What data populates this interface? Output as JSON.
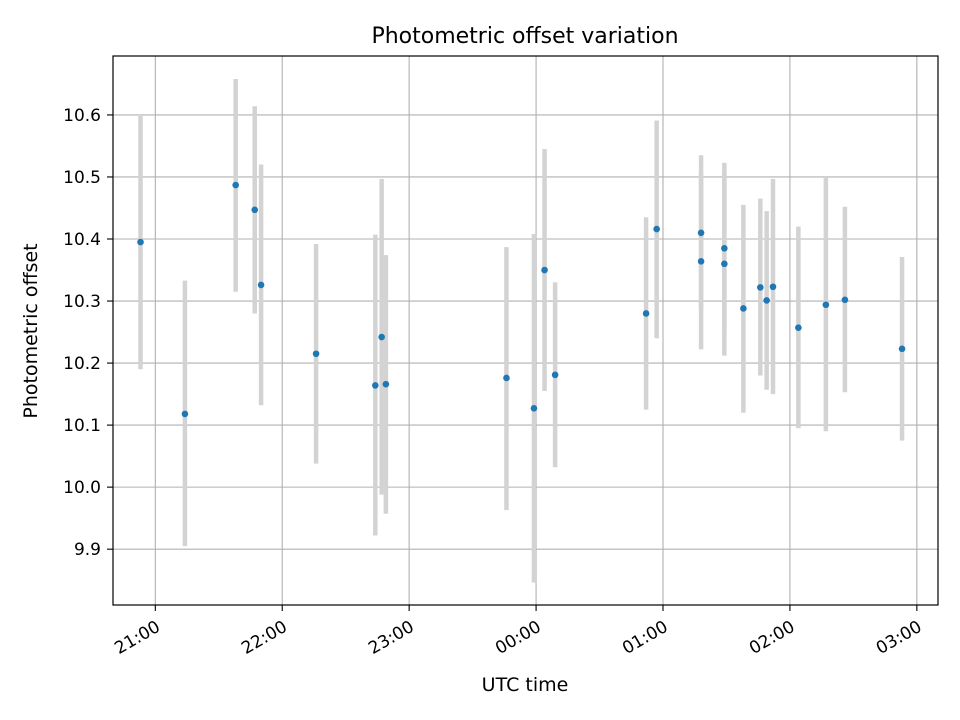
{
  "chart_data": {
    "type": "scatter",
    "title": "Photometric offset variation",
    "xlabel": "UTC time",
    "ylabel": "Photometric offset",
    "xlim": [
      "20:40",
      "03:10"
    ],
    "ylim": [
      9.81,
      10.695
    ],
    "x_ticks": [
      "21:00",
      "22:00",
      "23:00",
      "00:00",
      "01:00",
      "02:00",
      "03:00"
    ],
    "y_ticks": [
      "9.9",
      "10.0",
      "10.1",
      "10.2",
      "10.3",
      "10.4",
      "10.5",
      "10.6"
    ],
    "grid": true,
    "colors": {
      "point": "#1f77b4",
      "errorbar": "#d3d3d3",
      "grid": "#b0b0b0"
    },
    "series": [
      {
        "points": [
          {
            "time": "20:53",
            "y": 10.395,
            "lo": 10.19,
            "hi": 10.6
          },
          {
            "time": "21:14",
            "y": 10.118,
            "lo": 9.905,
            "hi": 10.333
          },
          {
            "time": "21:38",
            "y": 10.487,
            "lo": 10.315,
            "hi": 10.658
          },
          {
            "time": "21:47",
            "y": 10.447,
            "lo": 10.28,
            "hi": 10.614
          },
          {
            "time": "21:50",
            "y": 10.326,
            "lo": 10.132,
            "hi": 10.52
          },
          {
            "time": "22:16",
            "y": 10.215,
            "lo": 10.038,
            "hi": 10.392
          },
          {
            "time": "22:44",
            "y": 10.164,
            "lo": 9.922,
            "hi": 10.407
          },
          {
            "time": "22:47",
            "y": 10.242,
            "lo": 9.988,
            "hi": 10.497
          },
          {
            "time": "22:49",
            "y": 10.166,
            "lo": 9.957,
            "hi": 10.374
          },
          {
            "time": "23:46",
            "y": 10.176,
            "lo": 9.963,
            "hi": 10.387
          },
          {
            "time": "23:59",
            "y": 10.127,
            "lo": 9.846,
            "hi": 10.408
          },
          {
            "time": "00:04",
            "y": 10.35,
            "lo": 10.155,
            "hi": 10.545
          },
          {
            "time": "00:09",
            "y": 10.181,
            "lo": 10.032,
            "hi": 10.33
          },
          {
            "time": "00:52",
            "y": 10.28,
            "lo": 10.125,
            "hi": 10.435
          },
          {
            "time": "00:57",
            "y": 10.416,
            "lo": 10.24,
            "hi": 10.591
          },
          {
            "time": "01:18",
            "y": 10.41,
            "lo": 10.287,
            "hi": 10.535
          },
          {
            "time": "01:18",
            "y": 10.364,
            "lo": 10.222,
            "hi": 10.505
          },
          {
            "time": "01:29",
            "y": 10.385,
            "lo": 10.248,
            "hi": 10.523
          },
          {
            "time": "01:29",
            "y": 10.36,
            "lo": 10.212,
            "hi": 10.508
          },
          {
            "time": "01:38",
            "y": 10.288,
            "lo": 10.12,
            "hi": 10.455
          },
          {
            "time": "01:46",
            "y": 10.322,
            "lo": 10.18,
            "hi": 10.465
          },
          {
            "time": "01:49",
            "y": 10.301,
            "lo": 10.157,
            "hi": 10.445
          },
          {
            "time": "01:52",
            "y": 10.323,
            "lo": 10.15,
            "hi": 10.497
          },
          {
            "time": "02:04",
            "y": 10.257,
            "lo": 10.095,
            "hi": 10.42
          },
          {
            "time": "02:17",
            "y": 10.294,
            "lo": 10.09,
            "hi": 10.5
          },
          {
            "time": "02:26",
            "y": 10.302,
            "lo": 10.153,
            "hi": 10.452
          },
          {
            "time": "02:53",
            "y": 10.223,
            "lo": 10.075,
            "hi": 10.371
          }
        ]
      }
    ]
  }
}
